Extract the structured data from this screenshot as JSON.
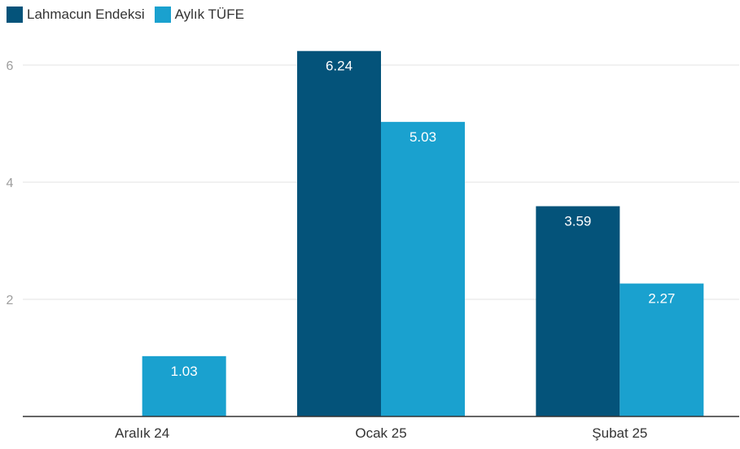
{
  "chart_data": {
    "type": "bar",
    "categories": [
      "Aralık 24",
      "Ocak 25",
      "Şubat 25"
    ],
    "series": [
      {
        "name": "Lahmacun Endeksi",
        "color": "#04537a",
        "values": [
          null,
          6.24,
          3.59
        ],
        "labels": [
          "",
          "6.24",
          "3.59"
        ]
      },
      {
        "name": "Aylık TÜFE",
        "color": "#1aa1cf",
        "values": [
          1.03,
          5.03,
          2.27
        ],
        "labels": [
          "1.03",
          "5.03",
          "2.27"
        ]
      }
    ],
    "y_ticks": [
      2,
      4,
      6
    ],
    "y_tick_labels": [
      "2",
      "4",
      "6"
    ],
    "ylim": [
      0,
      6.5
    ],
    "grid": true,
    "legend_position": "top-left"
  }
}
